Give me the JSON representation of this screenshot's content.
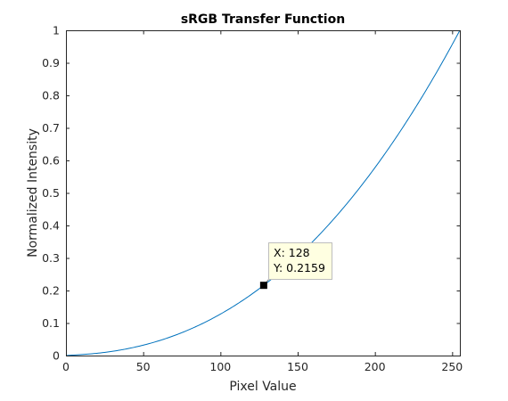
{
  "chart_data": {
    "type": "line",
    "title": "sRGB Transfer Function",
    "xlabel": "Pixel Value",
    "ylabel": "Normalized Intensity",
    "xlim": [
      0,
      255
    ],
    "ylim": [
      0,
      1
    ],
    "xticks": [
      0,
      50,
      100,
      150,
      200,
      250
    ],
    "xtick_labels": [
      "0",
      "50",
      "100",
      "150",
      "200",
      "250"
    ],
    "yticks": [
      0,
      0.1,
      0.2,
      0.3,
      0.4,
      0.5,
      0.6,
      0.7,
      0.8,
      0.9,
      1
    ],
    "ytick_labels": [
      "0",
      "0.1",
      "0.2",
      "0.3",
      "0.4",
      "0.5",
      "0.6",
      "0.7",
      "0.8",
      "0.9",
      "1"
    ],
    "grid": false,
    "series": [
      {
        "color": "#0072bd",
        "x": [
          0,
          10,
          20,
          30,
          40,
          50,
          60,
          70,
          80,
          90,
          100,
          110,
          120,
          128,
          140,
          150,
          160,
          170,
          180,
          190,
          200,
          210,
          220,
          230,
          240,
          250,
          255
        ],
        "values": [
          0,
          0.003,
          0.007,
          0.0129,
          0.0213,
          0.0331,
          0.0452,
          0.0612,
          0.0802,
          0.1022,
          0.1274,
          0.1559,
          0.1878,
          0.2159,
          0.2623,
          0.3049,
          0.3515,
          0.402,
          0.4564,
          0.5149,
          0.5776,
          0.6445,
          0.7157,
          0.7913,
          0.8713,
          0.9559,
          1
        ]
      }
    ],
    "datatip": {
      "x": 128,
      "y": 0.2159,
      "x_text": "X: 128",
      "y_text": "Y: 0.2159"
    }
  }
}
